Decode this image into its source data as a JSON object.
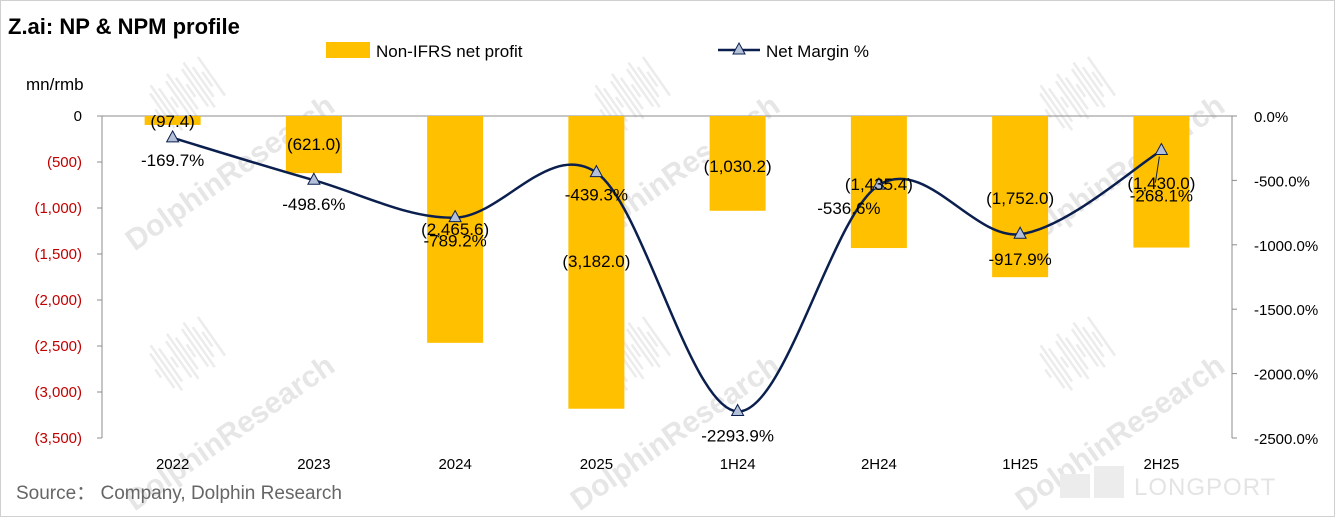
{
  "title": "Z.ai: NP & NPM profile",
  "unit_label": "mn/rmb",
  "source": "Source：  Company, Dolphin Research",
  "watermark": "DolphinResearch",
  "brand": "LONGPORT",
  "colors": {
    "bar": "#ffc000",
    "line": "#0b1f4e",
    "marker_fill": "#b4c0d8",
    "negative_tick": "#c00000",
    "axis": "#8c8c8c"
  },
  "chart_data": {
    "type": "bar+line",
    "categories": [
      "2022",
      "2023",
      "2024",
      "2025",
      "1H24",
      "2H24",
      "1H25",
      "2H25"
    ],
    "series": [
      {
        "name": "Non-IFRS net profit",
        "type": "bar",
        "axis": "left",
        "values": [
          -97.4,
          -621.0,
          -2465.6,
          -3182.0,
          -1030.2,
          -1435.4,
          -1752.0,
          -1430.0
        ],
        "labels": [
          "(97.4)",
          "(621.0)",
          "(2,465.6)",
          "(3,182.0)",
          "(1,030.2)",
          "(1,435.4)",
          "(1,752.0)",
          "(1,430.0)"
        ]
      },
      {
        "name": "Net Margin %",
        "type": "line",
        "axis": "right",
        "marker": "triangle",
        "smooth": true,
        "values": [
          -169.7,
          -498.6,
          -789.2,
          -439.3,
          -2293.9,
          -536.6,
          -917.9,
          -268.1
        ],
        "labels": [
          "-169.7%",
          "-498.6%",
          "-789.2%",
          "-439.3%",
          "-2293.9%",
          "-536.6%",
          "-917.9%",
          "-268.1%"
        ]
      }
    ],
    "y_left": {
      "range": [
        -3500,
        0
      ],
      "ticks": [
        0,
        -500,
        -1000,
        -1500,
        -2000,
        -2500,
        -3000,
        -3500
      ],
      "tick_labels": [
        "0",
        "(500)",
        "(1,000)",
        "(1,500)",
        "(2,000)",
        "(2,500)",
        "(3,000)",
        "(3,500)"
      ]
    },
    "y_right": {
      "range": [
        -2500,
        0
      ],
      "ticks": [
        0,
        -500,
        -1000,
        -1500,
        -2000,
        -2500
      ],
      "tick_labels": [
        "0.0%",
        "-500.0%",
        "-1000.0%",
        "-1500.0%",
        "-2000.0%",
        "-2500.0%"
      ]
    },
    "grid": false,
    "legend": "top"
  }
}
